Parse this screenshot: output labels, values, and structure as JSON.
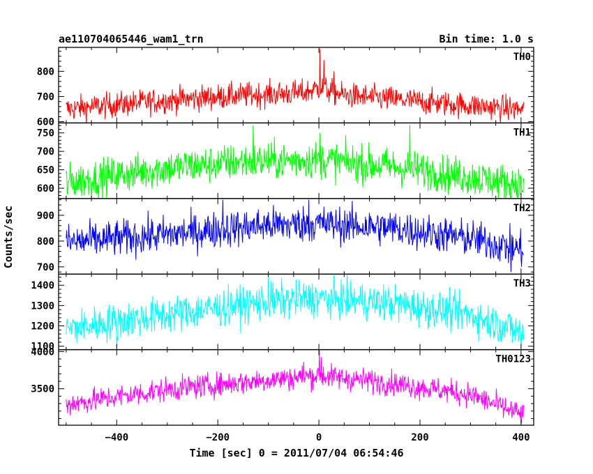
{
  "header": {
    "obs_id": "ae110704065446_wam1_trn",
    "bin_time": "Bin time: 1.0 s"
  },
  "chart_data": {
    "type": "line",
    "xlabel": "Time [sec] 0 = 2011/07/04 06:54:46",
    "ylabel": "Counts/sec",
    "xlim": [
      -515,
      425
    ],
    "x_ticks": [
      -400,
      -200,
      0,
      200,
      400
    ],
    "x_tick_labels": [
      "−400",
      "−200",
      "0",
      "200",
      "400"
    ],
    "data_x_range": [
      -500,
      405
    ],
    "bin": 1.0,
    "panels": [
      {
        "label": "TH0",
        "color": "#ff0000",
        "ylim": [
          595,
          895
        ],
        "y_ticks": [
          600,
          700,
          800
        ],
        "profile": [
          {
            "x": -500,
            "y": 650
          },
          {
            "x": -300,
            "y": 685
          },
          {
            "x": -150,
            "y": 705
          },
          {
            "x": -30,
            "y": 715
          },
          {
            "x": 0,
            "y": 735
          },
          {
            "x": 50,
            "y": 705
          },
          {
            "x": 200,
            "y": 680
          },
          {
            "x": 405,
            "y": 648
          }
        ],
        "noise": 25,
        "spikes": [
          {
            "x": 2,
            "y": 890
          },
          {
            "x": 10,
            "y": 845
          },
          {
            "x": 30,
            "y": 800
          }
        ]
      },
      {
        "label": "TH1",
        "color": "#00ff00",
        "ylim": [
          572,
          777
        ],
        "y_ticks": [
          600,
          650,
          700,
          750
        ],
        "profile": [
          {
            "x": -500,
            "y": 615
          },
          {
            "x": -300,
            "y": 655
          },
          {
            "x": -150,
            "y": 672
          },
          {
            "x": 0,
            "y": 678
          },
          {
            "x": 200,
            "y": 650
          },
          {
            "x": 405,
            "y": 608
          }
        ],
        "noise": 25,
        "spikes": [
          {
            "x": -130,
            "y": 770
          },
          {
            "x": 180,
            "y": 772
          },
          {
            "x": 2,
            "y": 750
          }
        ]
      },
      {
        "label": "TH2",
        "color": "#0000ff",
        "ylim": [
          672,
          965
        ],
        "y_ticks": [
          700,
          800,
          900
        ],
        "profile": [
          {
            "x": -500,
            "y": 795
          },
          {
            "x": -300,
            "y": 825
          },
          {
            "x": -100,
            "y": 862
          },
          {
            "x": 0,
            "y": 868
          },
          {
            "x": 150,
            "y": 850
          },
          {
            "x": 300,
            "y": 810
          },
          {
            "x": 405,
            "y": 765
          }
        ],
        "noise": 35,
        "spikes": [
          {
            "x": -190,
            "y": 960
          },
          {
            "x": -20,
            "y": 960
          },
          {
            "x": 380,
            "y": 680
          }
        ]
      },
      {
        "label": "TH3",
        "color": "#00ffff",
        "ylim": [
          1083,
          1455
        ],
        "y_ticks": [
          1100,
          1200,
          1300,
          1400
        ],
        "profile": [
          {
            "x": -500,
            "y": 1185
          },
          {
            "x": -300,
            "y": 1255
          },
          {
            "x": -100,
            "y": 1320
          },
          {
            "x": 0,
            "y": 1335
          },
          {
            "x": 150,
            "y": 1310
          },
          {
            "x": 300,
            "y": 1255
          },
          {
            "x": 405,
            "y": 1165
          }
        ],
        "noise": 45,
        "spikes": [
          {
            "x": -100,
            "y": 1450
          },
          {
            "x": -400,
            "y": 1090
          },
          {
            "x": 400,
            "y": 1090
          }
        ]
      },
      {
        "label": "TH0123",
        "color": "#ff00ff",
        "ylim": [
          3010,
          4025
        ],
        "y_ticks": [
          3500,
          4000
        ],
        "profile": [
          {
            "x": -500,
            "y": 3290
          },
          {
            "x": -300,
            "y": 3490
          },
          {
            "x": -100,
            "y": 3620
          },
          {
            "x": 0,
            "y": 3680
          },
          {
            "x": 150,
            "y": 3570
          },
          {
            "x": 300,
            "y": 3420
          },
          {
            "x": 405,
            "y": 3140
          }
        ],
        "noise": 80,
        "spikes": [
          {
            "x": 1,
            "y": 4015
          },
          {
            "x": 5,
            "y": 3920
          },
          {
            "x": -30,
            "y": 3860
          }
        ]
      }
    ]
  }
}
